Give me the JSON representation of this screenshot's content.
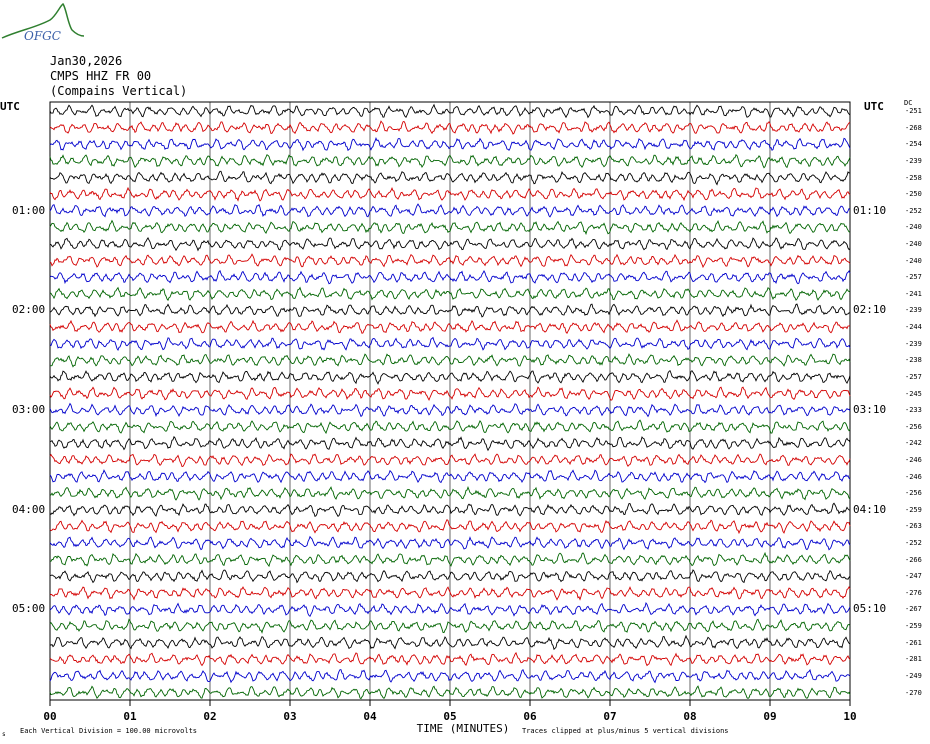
{
  "header": {
    "logo_text": "OFGC",
    "date": "Jan30,2026",
    "channel": "CMPS HHZ FR 00",
    "station_desc": "(Compains Vertical)",
    "utc_left": "UTC",
    "utc_right": "UTC",
    "dc_label": "DC"
  },
  "footer": {
    "scale_note": "Each Vertical Division =  100.00 microvolts",
    "clip_note": "Traces clipped at plus/minus 5 vertical divisions",
    "corner_mark": "s"
  },
  "colors": {
    "trace_cycle": [
      "#000000",
      "#d40000",
      "#0000cc",
      "#006400"
    ],
    "grid": "#000000",
    "logo": "#2f7f2f"
  },
  "chart_data": {
    "type": "line",
    "title": "CMPS HHZ FR 00 (Compains Vertical)",
    "xlabel": "TIME (MINUTES)",
    "x_ticks": [
      "00",
      "01",
      "02",
      "03",
      "04",
      "05",
      "06",
      "07",
      "08",
      "09",
      "10"
    ],
    "xlim": [
      0,
      10
    ],
    "left_time_labels": [
      {
        "row": 6,
        "text": "01:00"
      },
      {
        "row": 12,
        "text": "02:00"
      },
      {
        "row": 18,
        "text": "03:00"
      },
      {
        "row": 24,
        "text": "04:00"
      },
      {
        "row": 30,
        "text": "05:00"
      }
    ],
    "right_time_labels": [
      {
        "row": 6,
        "text": "01:10"
      },
      {
        "row": 12,
        "text": "02:10"
      },
      {
        "row": 18,
        "text": "03:10"
      },
      {
        "row": 24,
        "text": "04:10"
      },
      {
        "row": 30,
        "text": "05:10"
      }
    ],
    "dc_offsets": [
      "-251",
      "-268",
      "-254",
      "-239",
      "-258",
      "-250",
      "-252",
      "-240",
      "-240",
      "-240",
      "-257",
      "-241",
      "-239",
      "-244",
      "-239",
      "-238",
      "-257",
      "-245",
      "-233",
      "-256",
      "-242",
      "-246",
      "-246",
      "-256",
      "-259",
      "-263",
      "-252",
      "-266",
      "-247",
      "-276",
      "-267",
      "-259",
      "-261",
      "-281",
      "-249",
      "-270"
    ],
    "trace_count": 36,
    "clip_divisions": 5,
    "microvolts_per_division": 100.0
  }
}
